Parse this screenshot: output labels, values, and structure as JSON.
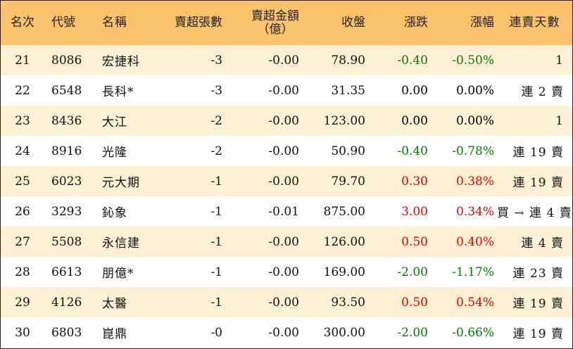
{
  "colors": {
    "header_bg": "#fbc26e",
    "odd_row_bg": "#fdf0d4",
    "even_row_bg": "#ffffff",
    "up": "#e60000",
    "down": "#008000",
    "flat": "#000000"
  },
  "headers": {
    "rank": "名次",
    "code": "代號",
    "name": "名稱",
    "vol": "賣超張數",
    "amt_line1": "賣超金額",
    "amt_line2": "（億）",
    "close": "收盤",
    "chg": "漲跌",
    "pct": "漲幅",
    "days": "連賣天數"
  },
  "rows": [
    {
      "rank": "21",
      "code": "8086",
      "name": "宏捷科",
      "vol": "-3",
      "amt": "-0.00",
      "close": "78.90",
      "chg": "-0.40",
      "pct": "-0.50%",
      "days": "1",
      "trend": "down"
    },
    {
      "rank": "22",
      "code": "6548",
      "name": "長科*",
      "vol": "-3",
      "amt": "-0.00",
      "close": "31.35",
      "chg": "0.00",
      "pct": "0.00%",
      "days": "連 2 賣",
      "trend": "flat"
    },
    {
      "rank": "23",
      "code": "8436",
      "name": "大江",
      "vol": "-2",
      "amt": "-0.00",
      "close": "123.00",
      "chg": "0.00",
      "pct": "0.00%",
      "days": "1",
      "trend": "flat"
    },
    {
      "rank": "24",
      "code": "8916",
      "name": "光隆",
      "vol": "-2",
      "amt": "-0.00",
      "close": "50.90",
      "chg": "-0.40",
      "pct": "-0.78%",
      "days": "連 19 賣",
      "trend": "down"
    },
    {
      "rank": "25",
      "code": "6023",
      "name": "元大期",
      "vol": "-1",
      "amt": "-0.00",
      "close": "79.70",
      "chg": "0.30",
      "pct": "0.38%",
      "days": "連 19 賣",
      "trend": "up"
    },
    {
      "rank": "26",
      "code": "3293",
      "name": "鈊象",
      "vol": "-1",
      "amt": "-0.01",
      "close": "875.00",
      "chg": "3.00",
      "pct": "0.34%",
      "days": "買 → 連 4 賣",
      "trend": "up"
    },
    {
      "rank": "27",
      "code": "5508",
      "name": "永信建",
      "vol": "-1",
      "amt": "-0.00",
      "close": "126.00",
      "chg": "0.50",
      "pct": "0.40%",
      "days": "連 4 賣",
      "trend": "up"
    },
    {
      "rank": "28",
      "code": "6613",
      "name": "朋億*",
      "vol": "-1",
      "amt": "-0.00",
      "close": "169.00",
      "chg": "-2.00",
      "pct": "-1.17%",
      "days": "連 23 賣",
      "trend": "down"
    },
    {
      "rank": "29",
      "code": "4126",
      "name": "太醫",
      "vol": "-1",
      "amt": "-0.00",
      "close": "93.50",
      "chg": "0.50",
      "pct": "0.54%",
      "days": "連 19 賣",
      "trend": "up"
    },
    {
      "rank": "30",
      "code": "6803",
      "name": "崑鼎",
      "vol": "-0",
      "amt": "-0.00",
      "close": "300.00",
      "chg": "-2.00",
      "pct": "-0.66%",
      "days": "連 19 賣",
      "trend": "down"
    }
  ]
}
